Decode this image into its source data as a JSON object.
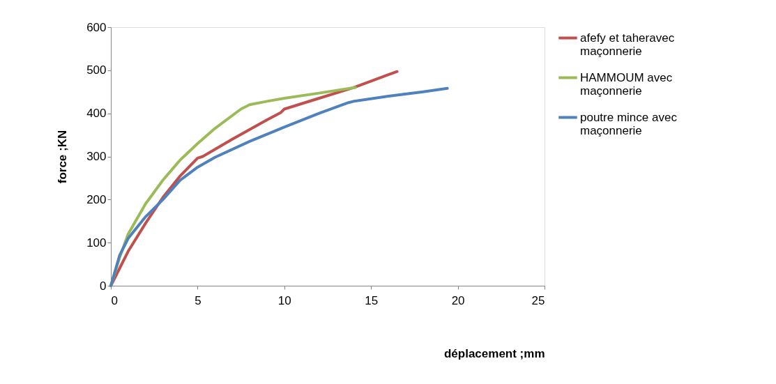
{
  "chart_data": {
    "type": "line",
    "xlabel": "déplacement ;mm",
    "ylabel": "force ;KN",
    "xlim": [
      0,
      25
    ],
    "xticks": [
      0,
      5,
      10,
      15,
      20,
      25
    ],
    "ylim": [
      0,
      600
    ],
    "yticks": [
      0,
      100,
      200,
      300,
      400,
      500,
      600
    ],
    "grid": false,
    "legend": "right",
    "marker": "none",
    "line_style": "solid",
    "series": [
      {
        "name": "afefy et taheravec maçonnerie",
        "color": "#c0504d",
        "x": [
          0,
          0.5,
          1,
          2,
          3,
          4,
          5,
          5.3,
          7,
          9,
          9.8,
          10,
          12,
          14,
          15,
          16,
          16.5
        ],
        "values": [
          0,
          40,
          80,
          145,
          205,
          255,
          296,
          300,
          340,
          385,
          402,
          410,
          435,
          460,
          475,
          490,
          497
        ]
      },
      {
        "name": "HAMMOUM avec maçonnerie",
        "color": "#9bbb59",
        "x": [
          0,
          0.5,
          1,
          2,
          3,
          4,
          5,
          6,
          7,
          7.5,
          8,
          9,
          10,
          12,
          14.1
        ],
        "values": [
          0,
          65,
          120,
          190,
          245,
          292,
          330,
          365,
          395,
          410,
          420,
          428,
          435,
          447,
          460
        ]
      },
      {
        "name": "poutre mince avec maçonnerie",
        "color": "#4f81bd",
        "x": [
          0,
          0.5,
          1,
          2,
          3,
          4,
          5,
          6,
          8,
          10,
          12,
          13.7,
          14,
          16,
          18,
          19.4
        ],
        "values": [
          0,
          70,
          110,
          160,
          200,
          245,
          275,
          298,
          335,
          368,
          400,
          425,
          428,
          440,
          450,
          458
        ]
      }
    ]
  }
}
